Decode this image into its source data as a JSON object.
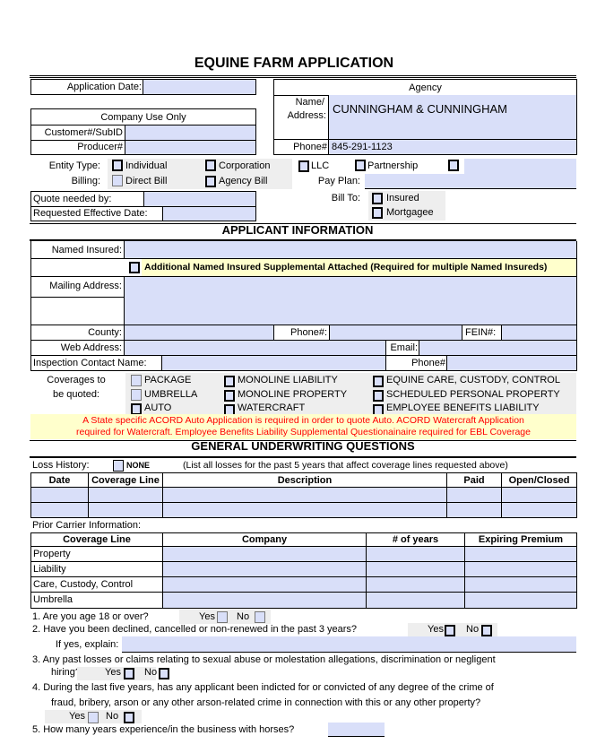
{
  "title": "EQUINE FARM APPLICATION",
  "header": {
    "application_date_label": "Application Date:",
    "company_use_only": "Company Use Only",
    "customer_label": "Customer#/SubID",
    "producer_label": "Producer#",
    "agency_label": "Agency",
    "name_address_label_1": "Name/",
    "name_address_label_2": "Address:",
    "agency_name": "CUNNINGHAM & CUNNINGHAM",
    "phone_label": "Phone#",
    "agency_phone": "845-291-1123"
  },
  "entity": {
    "label": "Entity Type:",
    "options": [
      "Individual",
      "Corporation",
      "LLC",
      "Partnership"
    ]
  },
  "billing": {
    "label": "Billing:",
    "options": [
      "Direct Bill",
      "Agency Bill"
    ],
    "pay_plan_label": "Pay Plan:"
  },
  "quote": {
    "quote_needed_label": "Quote needed by:",
    "effective_label": "Requested Effective Date:",
    "bill_to_label": "Bill To:",
    "bill_to_options": [
      "Insured",
      "Mortgagee"
    ]
  },
  "applicant": {
    "heading": "APPLICANT INFORMATION",
    "named_insured": "Named Insured:",
    "additional": "Additional Named Insured Supplemental Attached (Required for multiple Named Insureds)",
    "mailing": "Mailing Address:",
    "county": "County:",
    "phone": "Phone#:",
    "fein": "FEIN#:",
    "web": "Web Address:",
    "email": "Email:",
    "inspection": "Inspection Contact Name:",
    "phone2": "Phone#",
    "coverages_label_1": "Coverages to",
    "coverages_label_2": "be quoted:",
    "coverages": [
      "PACKAGE",
      "UMBRELLA",
      "AUTO",
      "MONOLINE LIABILITY",
      "MONOLINE PROPERTY",
      "WATERCRAFT",
      "EQUINE CARE, CUSTODY, CONTROL",
      "SCHEDULED PERSONAL PROPERTY",
      "EMPLOYEE BENEFITS LIABILITY"
    ],
    "notice_1": "A State specific ACORD Auto Application is required in order to quote Auto.  ACORD Watercraft Application",
    "notice_2": "required for Watercraft.  Employee Benefits Liability Supplemental Questionainaire required for EBL Coverage",
    "notice_color": "#ff0000"
  },
  "underwriting": {
    "heading": "GENERAL UNDERWRITING QUESTIONS",
    "loss_history": "Loss History:",
    "none": "NONE",
    "loss_note": "(List all losses for the past 5 years that affect coverage lines requested above)",
    "loss_columns": [
      "Date",
      "Coverage Line",
      "Description",
      "Paid",
      "Open/Closed"
    ],
    "prior_carrier": "Prior Carrier Information:",
    "prior_columns": [
      "Coverage Line",
      "Company",
      "# of years",
      "Expiring Premium"
    ],
    "prior_rows": [
      "Property",
      "Liability",
      "Care, Custody, Control",
      "Umbrella"
    ]
  },
  "questions": {
    "yes": "Yes",
    "no": "No",
    "q1": "1.   Are you age 18 or over?",
    "q2": "2.   Have you been declined, cancelled or non-renewed in the past 3 years?",
    "q2_explain": "If yes, explain:",
    "q3a": "3.   Any past losses or claims relating to sexual abuse or molestation allegations, discrimination or negligent",
    "q3b": "hiring?",
    "q4a": "4.   During the last five years, has any applicant been indicted for or convicted of any degree of the crime of",
    "q4b": "fraud, bribery, arson or any other arson-related crime in connection with this or any other property?",
    "q5": "5.   How many years experience/in the business with horses?"
  },
  "colors": {
    "field_fill": "#d9dff9",
    "highlight": "#ffffcc",
    "shade": "#eeeeee"
  }
}
